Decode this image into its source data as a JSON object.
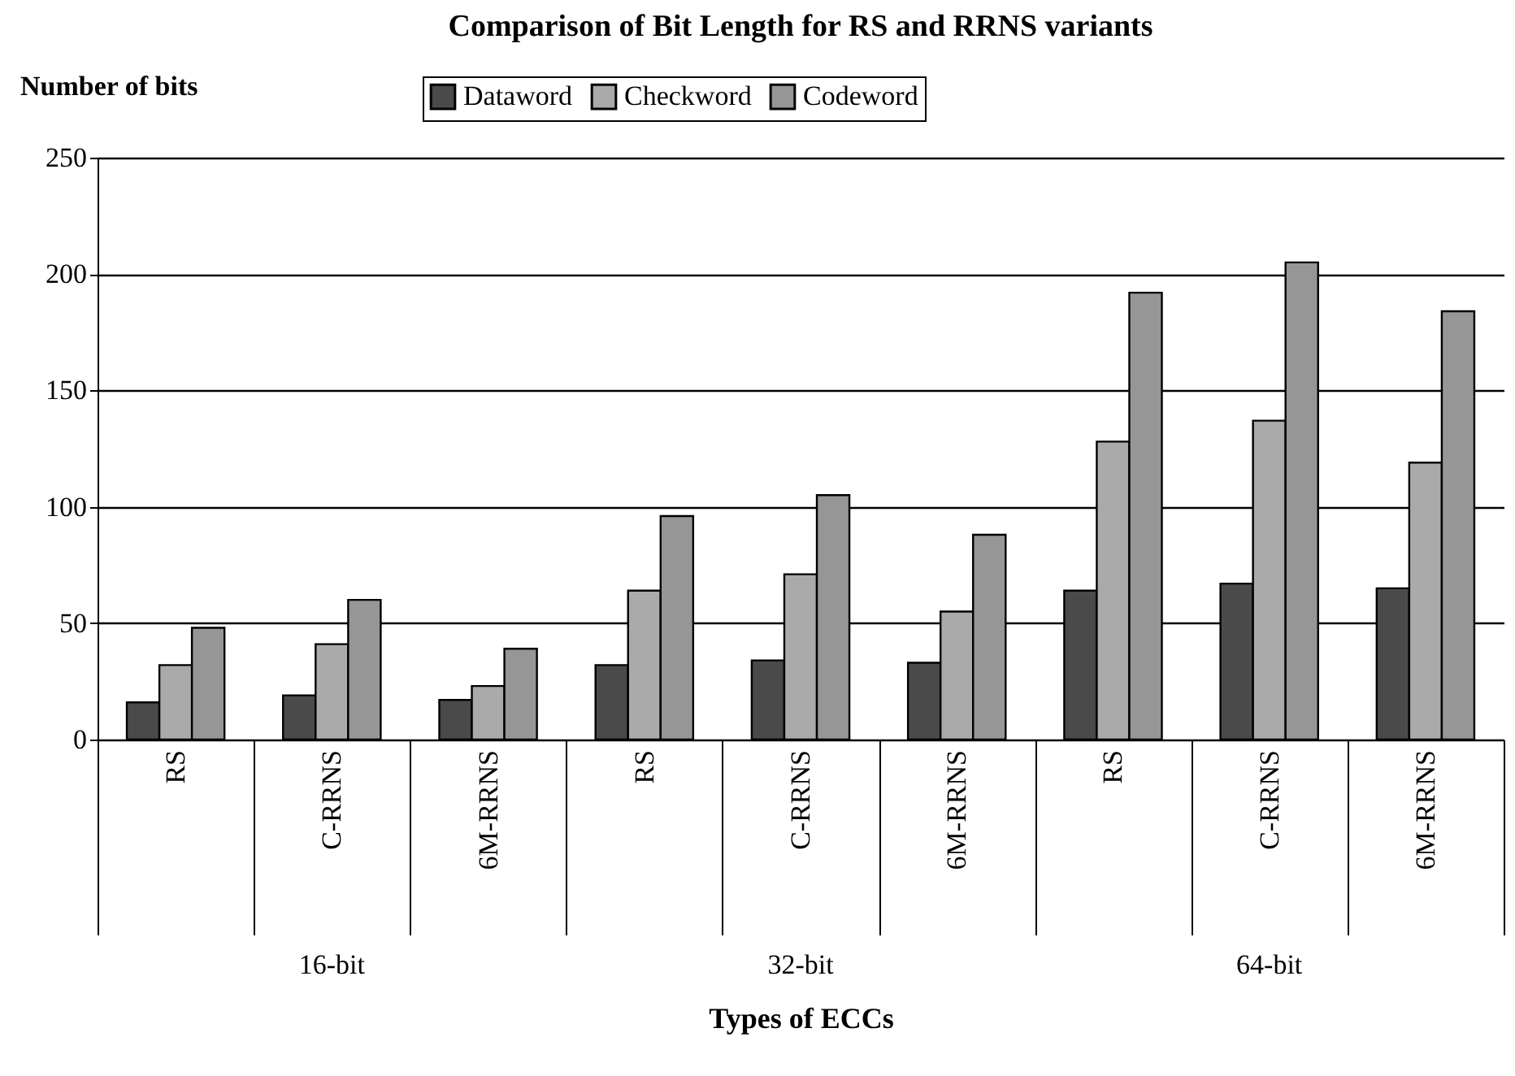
{
  "chart_data": {
    "type": "bar",
    "title": "Comparison of Bit Length for RS and RRNS variants",
    "xlabel": "Types of ECCs",
    "ylabel": "Number of bits",
    "categories": [
      "RS",
      "C-RRNS",
      "6M-RRNS",
      "RS",
      "C-RRNS",
      "6M-RRNS",
      "RS",
      "C-RRNS",
      "6M-RRNS"
    ],
    "annotations": [
      "16-bit",
      "32-bit",
      "64-bit"
    ],
    "series": [
      {
        "name": "Dataword",
        "color": "#4a4a4a",
        "values": [
          16,
          19,
          17,
          32,
          34,
          33,
          64,
          67,
          65
        ]
      },
      {
        "name": "Checkword",
        "color": "#aaaaaa",
        "values": [
          32,
          41,
          23,
          64,
          71,
          55,
          128,
          137,
          119
        ]
      },
      {
        "name": "Codeword",
        "color": "#969696",
        "values": [
          48,
          60,
          39,
          96,
          105,
          88,
          192,
          205,
          184
        ]
      }
    ],
    "ylim": [
      0,
      250
    ],
    "yticks": [
      0,
      50,
      100,
      150,
      200,
      250
    ],
    "grid": "y",
    "legend": "top"
  }
}
